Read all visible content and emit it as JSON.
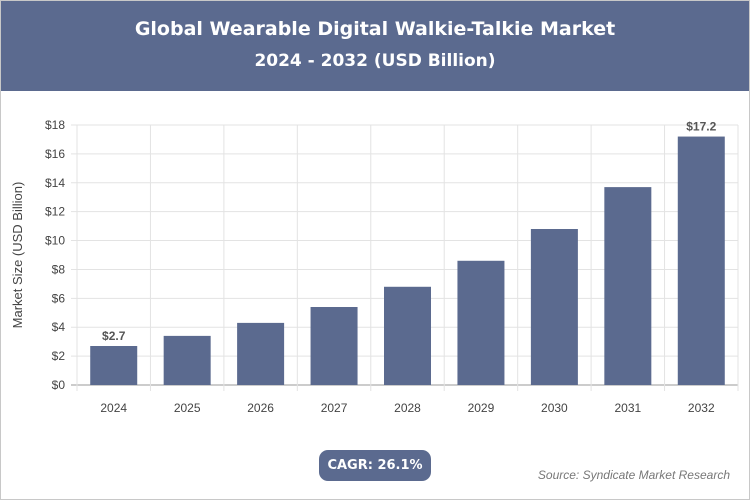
{
  "chart_data": {
    "type": "bar",
    "title": "Global Wearable Digital Walkie-Talkie Market",
    "subtitle": "2024 - 2032 (USD Billion)",
    "ylabel": "Market Size (USD Billion)",
    "xlabel": "",
    "categories": [
      "2024",
      "2025",
      "2026",
      "2027",
      "2028",
      "2029",
      "2030",
      "2031",
      "2032"
    ],
    "values": [
      2.7,
      3.4,
      4.3,
      5.4,
      6.8,
      8.6,
      10.8,
      13.7,
      17.2
    ],
    "data_labels": {
      "0": "$2.7",
      "8": "$17.2"
    },
    "ylim": [
      0,
      18
    ],
    "yticks": [
      "$0",
      "$2",
      "$4",
      "$6",
      "$8",
      "$10",
      "$12",
      "$14",
      "$16",
      "$18"
    ],
    "grid": true,
    "bar_color": "#5b6a8f"
  },
  "cagr_label": "CAGR: 26.1%",
  "source": "Source: Syndicate Market Research"
}
